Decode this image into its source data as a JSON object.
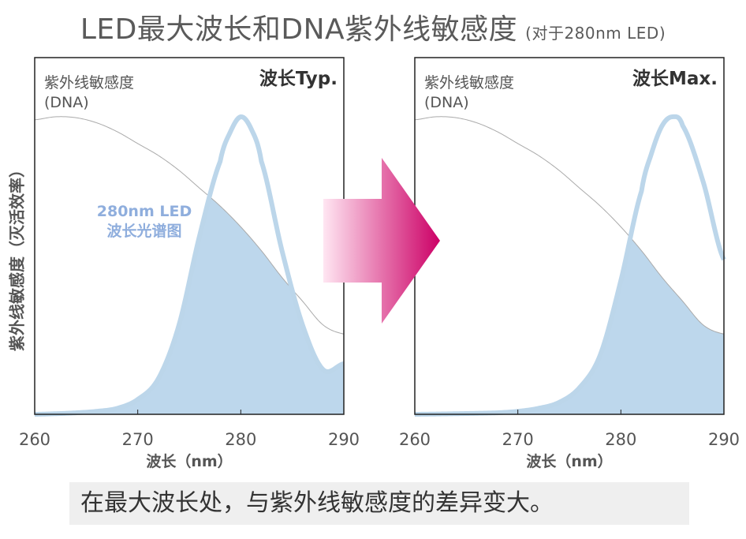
{
  "title": "LED最大波长和DNA紫外线敏感度",
  "subtitle": "(对于280nm LED)",
  "y_axis_label": "紫外线敏感度（灭活效率）",
  "caption": "在最大波长处，与紫外线敏感度的差异变大。",
  "colors": {
    "led_curve": "#bcd6ea",
    "overlap_fill": "#bdd7ec",
    "dna_curve": "#aaaaaa",
    "arrow_light": "#ffe6f2",
    "arrow_dark": "#cc0066",
    "annotation": "#8faedd"
  },
  "chart_data": [
    {
      "type": "line",
      "corner_label": "波长Typ.",
      "annotation": [
        "280nm LED",
        "波长光谱图"
      ],
      "xlabel": "波长（nm）",
      "xlim": [
        260,
        290
      ],
      "x_ticks": [
        "260",
        "270",
        "280",
        "290"
      ],
      "ylim": [
        0,
        1
      ],
      "series": [
        {
          "name": "紫外线敏感度 (DNA)",
          "label_lines": [
            "紫外线敏感度",
            "(DNA)"
          ],
          "x": [
            260,
            262,
            264,
            266,
            268,
            270,
            272,
            274,
            276,
            278,
            280,
            282,
            284,
            286,
            288,
            290
          ],
          "y": [
            0.99,
            1.0,
            0.997,
            0.98,
            0.95,
            0.91,
            0.87,
            0.82,
            0.76,
            0.7,
            0.63,
            0.55,
            0.46,
            0.38,
            0.3,
            0.27
          ]
        },
        {
          "name": "280nm LED",
          "x": [
            260,
            262,
            264,
            266,
            268,
            270,
            272,
            274,
            276,
            278,
            279,
            280,
            281,
            282,
            284,
            286,
            288,
            290
          ],
          "y": [
            0.0,
            0.002,
            0.005,
            0.01,
            0.02,
            0.05,
            0.12,
            0.3,
            0.6,
            0.85,
            0.95,
            1.0,
            0.96,
            0.85,
            0.55,
            0.3,
            0.15,
            0.17
          ]
        }
      ]
    },
    {
      "type": "line",
      "corner_label": "波长Max.",
      "xlabel": "波长（nm）",
      "xlim": [
        260,
        290
      ],
      "x_ticks": [
        "260",
        "270",
        "280",
        "290"
      ],
      "ylim": [
        0,
        1
      ],
      "series": [
        {
          "name": "紫外线敏感度 (DNA)",
          "label_lines": [
            "紫外线敏感度",
            "(DNA)"
          ],
          "x": [
            260,
            262,
            264,
            266,
            268,
            270,
            272,
            274,
            276,
            278,
            280,
            282,
            284,
            286,
            288,
            290
          ],
          "y": [
            0.99,
            1.0,
            0.997,
            0.98,
            0.95,
            0.91,
            0.87,
            0.82,
            0.76,
            0.7,
            0.63,
            0.55,
            0.46,
            0.38,
            0.3,
            0.27
          ]
        },
        {
          "name": "280nm LED",
          "x": [
            260,
            264,
            268,
            270,
            272,
            274,
            276,
            278,
            280,
            282,
            283,
            284,
            285,
            286,
            288,
            290
          ],
          "y": [
            0.0,
            0.002,
            0.005,
            0.01,
            0.02,
            0.04,
            0.09,
            0.2,
            0.45,
            0.75,
            0.88,
            0.97,
            1.0,
            0.97,
            0.78,
            0.52
          ]
        }
      ]
    }
  ]
}
